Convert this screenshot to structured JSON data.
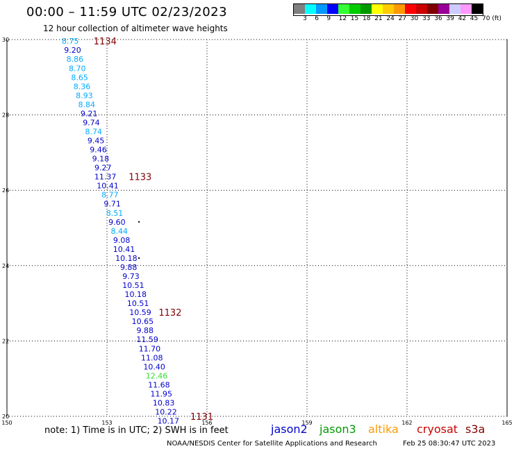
{
  "title": "00:00 – 11:59 UTC 02/23/2023",
  "subtitle": "12 hour collection of altimeter wave heights",
  "colorbar": {
    "colors": [
      "#808080",
      "#00ffff",
      "#0099ff",
      "#0000ff",
      "#33ff33",
      "#00cc00",
      "#009900",
      "#ffff00",
      "#ffcc00",
      "#ff9900",
      "#ff0000",
      "#cc0000",
      "#800000",
      "#990099",
      "#ccccff",
      "#ff99ff",
      "#000000"
    ],
    "labels": [
      "3",
      "6",
      "9",
      "12",
      "15",
      "18",
      "21",
      "24",
      "27",
      "30",
      "33",
      "36",
      "39",
      "42",
      "45",
      "70 (ft)"
    ]
  },
  "map": {
    "lon_range": [
      150,
      165
    ],
    "lat_range": [
      20,
      30
    ],
    "x_ticks": [
      "150",
      "153",
      "156",
      "159",
      "162",
      "165"
    ],
    "y_ticks": [
      "30",
      "28",
      "26",
      "24",
      "22",
      "20"
    ],
    "grid_lon": [
      153,
      156,
      159,
      162
    ],
    "grid_lat": [
      28,
      26,
      24,
      22
    ],
    "observations": [
      {
        "lon": 151.9,
        "lat": 29.96,
        "value": "8.75",
        "color": "#00aaff"
      },
      {
        "lon": 151.97,
        "lat": 29.72,
        "value": "9.20",
        "color": "#0000cc"
      },
      {
        "lon": 152.04,
        "lat": 29.48,
        "value": "8.86",
        "color": "#00aaff"
      },
      {
        "lon": 152.11,
        "lat": 29.24,
        "value": "8.70",
        "color": "#00aaff"
      },
      {
        "lon": 152.18,
        "lat": 29.0,
        "value": "8.65",
        "color": "#00aaff"
      },
      {
        "lon": 152.25,
        "lat": 28.76,
        "value": "8.36",
        "color": "#00aaff"
      },
      {
        "lon": 152.32,
        "lat": 28.52,
        "value": "8.93",
        "color": "#00aaff"
      },
      {
        "lon": 152.39,
        "lat": 28.28,
        "value": "8.84",
        "color": "#00aaff"
      },
      {
        "lon": 152.46,
        "lat": 28.04,
        "value": "9.21",
        "color": "#0000cc"
      },
      {
        "lon": 152.53,
        "lat": 27.8,
        "value": "9.74",
        "color": "#0000cc"
      },
      {
        "lon": 152.6,
        "lat": 27.56,
        "value": "8.74",
        "color": "#00aaff"
      },
      {
        "lon": 152.67,
        "lat": 27.32,
        "value": "9.45",
        "color": "#0000cc"
      },
      {
        "lon": 152.74,
        "lat": 27.08,
        "value": "9.46",
        "color": "#0000cc"
      },
      {
        "lon": 152.81,
        "lat": 26.84,
        "value": "9.18",
        "color": "#0000cc"
      },
      {
        "lon": 152.88,
        "lat": 26.6,
        "value": "9.27",
        "color": "#0000cc"
      },
      {
        "lon": 152.95,
        "lat": 26.36,
        "value": "11.37",
        "color": "#0000cc"
      },
      {
        "lon": 153.02,
        "lat": 26.12,
        "value": "10.41",
        "color": "#0000cc"
      },
      {
        "lon": 153.09,
        "lat": 25.88,
        "value": "8.77",
        "color": "#00aaff"
      },
      {
        "lon": 153.16,
        "lat": 25.64,
        "value": "9.71",
        "color": "#0000cc"
      },
      {
        "lon": 153.23,
        "lat": 25.4,
        "value": "8.51",
        "color": "#00aaff"
      },
      {
        "lon": 153.3,
        "lat": 25.16,
        "value": "9.60",
        "color": "#0000cc"
      },
      {
        "lon": 153.37,
        "lat": 24.92,
        "value": "8.44",
        "color": "#00aaff"
      },
      {
        "lon": 153.44,
        "lat": 24.68,
        "value": "9.08",
        "color": "#0000cc"
      },
      {
        "lon": 153.51,
        "lat": 24.44,
        "value": "10.41",
        "color": "#0000cc"
      },
      {
        "lon": 153.58,
        "lat": 24.2,
        "value": "10.18",
        "color": "#0000cc"
      },
      {
        "lon": 153.65,
        "lat": 23.96,
        "value": "9.88",
        "color": "#0000cc"
      },
      {
        "lon": 153.72,
        "lat": 23.72,
        "value": "9.73",
        "color": "#0000cc"
      },
      {
        "lon": 153.79,
        "lat": 23.48,
        "value": "10.51",
        "color": "#0000cc"
      },
      {
        "lon": 153.86,
        "lat": 23.24,
        "value": "10.18",
        "color": "#0000cc"
      },
      {
        "lon": 153.93,
        "lat": 23.0,
        "value": "10.51",
        "color": "#0000cc"
      },
      {
        "lon": 154.0,
        "lat": 22.76,
        "value": "10.59",
        "color": "#0000cc"
      },
      {
        "lon": 154.07,
        "lat": 22.52,
        "value": "10.65",
        "color": "#0000cc"
      },
      {
        "lon": 154.14,
        "lat": 22.28,
        "value": "9.88",
        "color": "#0000cc"
      },
      {
        "lon": 154.21,
        "lat": 22.04,
        "value": "11.59",
        "color": "#0000cc"
      },
      {
        "lon": 154.28,
        "lat": 21.8,
        "value": "11.70",
        "color": "#0000cc"
      },
      {
        "lon": 154.35,
        "lat": 21.56,
        "value": "11.08",
        "color": "#0000cc"
      },
      {
        "lon": 154.42,
        "lat": 21.32,
        "value": "10.40",
        "color": "#0000cc"
      },
      {
        "lon": 154.49,
        "lat": 21.08,
        "value": "12.46",
        "color": "#33dd33"
      },
      {
        "lon": 154.56,
        "lat": 20.84,
        "value": "11.68",
        "color": "#0000cc"
      },
      {
        "lon": 154.63,
        "lat": 20.6,
        "value": "11.95",
        "color": "#0000cc"
      },
      {
        "lon": 154.7,
        "lat": 20.36,
        "value": "10.83",
        "color": "#0000cc"
      },
      {
        "lon": 154.77,
        "lat": 20.12,
        "value": "10.22",
        "color": "#0000cc"
      },
      {
        "lon": 154.84,
        "lat": 19.88,
        "value": "10.17",
        "color": "#0000cc"
      }
    ],
    "pass_labels": [
      {
        "lon": 152.6,
        "lat": 29.96,
        "text": "1134"
      },
      {
        "lon": 153.65,
        "lat": 26.36,
        "text": "1133"
      },
      {
        "lon": 154.55,
        "lat": 22.76,
        "text": "1132"
      },
      {
        "lon": 155.5,
        "lat": 20.0,
        "text": "1131"
      }
    ],
    "dots": [
      {
        "lon": 153.96,
        "lat": 25.16
      },
      {
        "lon": 153.96,
        "lat": 24.2
      }
    ]
  },
  "note": "note:  1) Time is in UTC;  2) SWH is in feet",
  "satellites": [
    {
      "name": "jason2",
      "color": "#0000cc"
    },
    {
      "name": "jason3",
      "color": "#009900"
    },
    {
      "name": "altika",
      "color": "#ff9900"
    },
    {
      "name": "cryosat",
      "color": "#cc0000"
    },
    {
      "name": "s3a",
      "color": "#800000"
    }
  ],
  "credit": "NOAA/NESDIS Center for Satellite Applications and Research",
  "timestamp": "Feb 25 08:30:47 UTC 2023"
}
